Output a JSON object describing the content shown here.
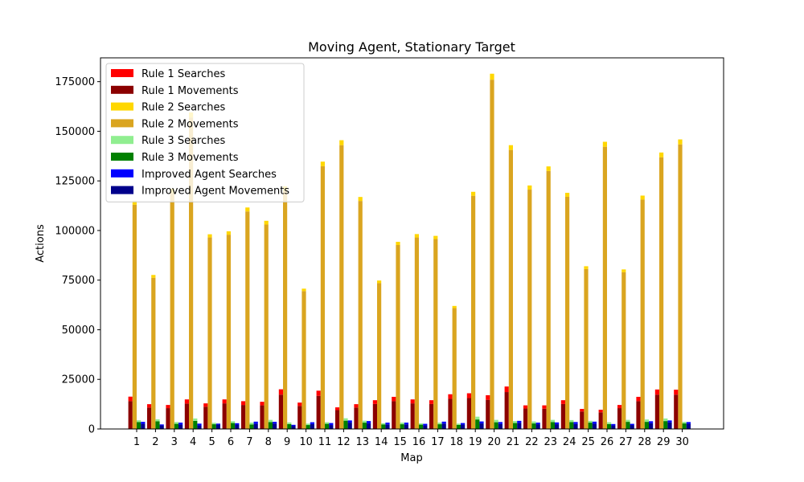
{
  "chart_data": {
    "type": "bar",
    "title": "Moving Agent, Stationary Target",
    "xlabel": "Map",
    "ylabel": "Actions",
    "ylim": [
      0,
      187000
    ],
    "yticks": [
      0,
      25000,
      50000,
      75000,
      100000,
      125000,
      150000,
      175000
    ],
    "legend_position": "upper-left",
    "grid": false,
    "stacked_pairs": true,
    "categories": [
      "1",
      "2",
      "3",
      "4",
      "5",
      "6",
      "7",
      "8",
      "9",
      "10",
      "11",
      "12",
      "13",
      "14",
      "15",
      "16",
      "17",
      "18",
      "19",
      "20",
      "21",
      "22",
      "23",
      "24",
      "25",
      "26",
      "27",
      "28",
      "29",
      "30"
    ],
    "groups": [
      {
        "label": "Rule 1",
        "searches": {
          "name": "Rule 1 Searches",
          "color": "#ff0000",
          "values": [
            2300,
            1700,
            1600,
            2100,
            1700,
            2000,
            1900,
            1800,
            2700,
            1700,
            2600,
            1400,
            1700,
            1900,
            2200,
            2000,
            1900,
            2300,
            2400,
            2300,
            2800,
            1600,
            1700,
            1900,
            1300,
            1300,
            1600,
            2200,
            2600,
            2500
          ]
        },
        "movements": {
          "name": "Rule 1 Movements",
          "color": "#8b0000",
          "values": [
            14000,
            10800,
            10500,
            12800,
            11200,
            12900,
            12100,
            11900,
            17300,
            11600,
            16700,
            9500,
            10800,
            12600,
            14000,
            12900,
            12600,
            15200,
            15600,
            14700,
            18600,
            10300,
            10200,
            12600,
            8800,
            8400,
            10500,
            14000,
            17300,
            17300
          ]
        }
      },
      {
        "label": "Rule 2",
        "searches": {
          "name": "Rule 2 Searches",
          "color": "#ffd700",
          "values": [
            2000,
            1400,
            2100,
            2500,
            1600,
            1700,
            2000,
            1900,
            2300,
            1200,
            2300,
            2500,
            2000,
            1300,
            1600,
            1700,
            1600,
            1100,
            2000,
            3000,
            2400,
            2100,
            2300,
            2000,
            1400,
            2500,
            1400,
            2000,
            2400,
            2500
          ]
        },
        "movements": {
          "name": "Rule 2 Movements",
          "color": "#daa520",
          "values": [
            113000,
            76200,
            119000,
            157000,
            96500,
            97900,
            109600,
            103000,
            120000,
            69500,
            132400,
            143000,
            114900,
            73500,
            92700,
            96500,
            95700,
            60900,
            117500,
            176000,
            140600,
            120600,
            130000,
            117000,
            80600,
            142200,
            79000,
            115600,
            136900,
            143400
          ]
        }
      },
      {
        "label": "Rule 3",
        "searches": {
          "name": "Rule 3 Searches",
          "color": "#90ee90",
          "values": [
            900,
            1000,
            900,
            1200,
            700,
            900,
            900,
            1100,
            800,
            700,
            800,
            1200,
            1000,
            600,
            800,
            600,
            800,
            600,
            1400,
            1200,
            1000,
            1000,
            1100,
            1000,
            900,
            900,
            1000,
            1200,
            1300,
            800
          ]
        },
        "movements": {
          "name": "Rule 3 Movements",
          "color": "#008000",
          "values": [
            3500,
            3900,
            2600,
            4100,
            2400,
            3000,
            2300,
            3500,
            2500,
            2000,
            2600,
            4200,
            3200,
            2300,
            2400,
            2200,
            2400,
            2100,
            4800,
            3400,
            3000,
            2800,
            3500,
            3500,
            3200,
            2500,
            3600,
            3600,
            4000,
            2800
          ]
        }
      },
      {
        "label": "Improved Agent",
        "searches": {
          "name": "Improved Agent Searches",
          "color": "#0000ff",
          "values": [
            1000,
            500,
            1000,
            900,
            500,
            700,
            1100,
            900,
            500,
            900,
            1000,
            1100,
            1200,
            900,
            900,
            800,
            1000,
            800,
            1000,
            1000,
            1100,
            800,
            900,
            1000,
            1100,
            700,
            600,
            1000,
            1000,
            900
          ]
        },
        "movements": {
          "name": "Improved Agent Movements",
          "color": "#00008b",
          "values": [
            2600,
            1800,
            2200,
            1800,
            2200,
            2200,
            2600,
            2700,
            1600,
            2500,
            2000,
            3200,
            2800,
            2300,
            2300,
            1800,
            2700,
            2200,
            2800,
            2500,
            3000,
            2400,
            2400,
            2500,
            2600,
            1800,
            2000,
            2900,
            3300,
            2600
          ]
        }
      }
    ]
  }
}
